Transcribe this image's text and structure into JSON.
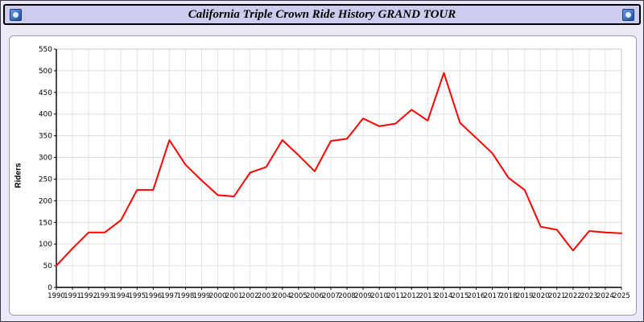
{
  "header": {
    "title": "California Triple Crown Ride History GRAND TOUR",
    "left_icon": "bicycle-logo-icon",
    "right_icon": "bicycle-logo-icon"
  },
  "colors": {
    "page_bg": "#e9e9f6",
    "header_bg": "#ccccee",
    "header_border": "#000000",
    "panel_bg": "#ffffff",
    "line": "#ff0000",
    "grid": "#dcdcdc",
    "axis": "#000000"
  },
  "chart_data": {
    "type": "line",
    "title": "California Triple Crown Ride History GRAND TOUR",
    "xlabel": "",
    "ylabel": "Riders",
    "ylim": [
      0,
      550
    ],
    "ytick_interval": 50,
    "grid": true,
    "legend": "none",
    "x": [
      1990,
      1991,
      1992,
      1993,
      1994,
      1995,
      1996,
      1997,
      1998,
      1999,
      2000,
      2001,
      2002,
      2003,
      2004,
      2005,
      2006,
      2007,
      2008,
      2009,
      2010,
      2011,
      2012,
      2013,
      2014,
      2015,
      2016,
      2017,
      2018,
      2019,
      2020,
      2021,
      2022,
      2023,
      2024,
      2025
    ],
    "series": [
      {
        "name": "Riders",
        "color": "#ff0000",
        "values": [
          50,
          90,
          127,
          127,
          155,
          225,
          225,
          340,
          283,
          247,
          213,
          210,
          265,
          278,
          340,
          305,
          268,
          338,
          343,
          390,
          372,
          378,
          410,
          385,
          495,
          380,
          345,
          310,
          253,
          225,
          140,
          133,
          85,
          130,
          127,
          125
        ]
      }
    ]
  }
}
